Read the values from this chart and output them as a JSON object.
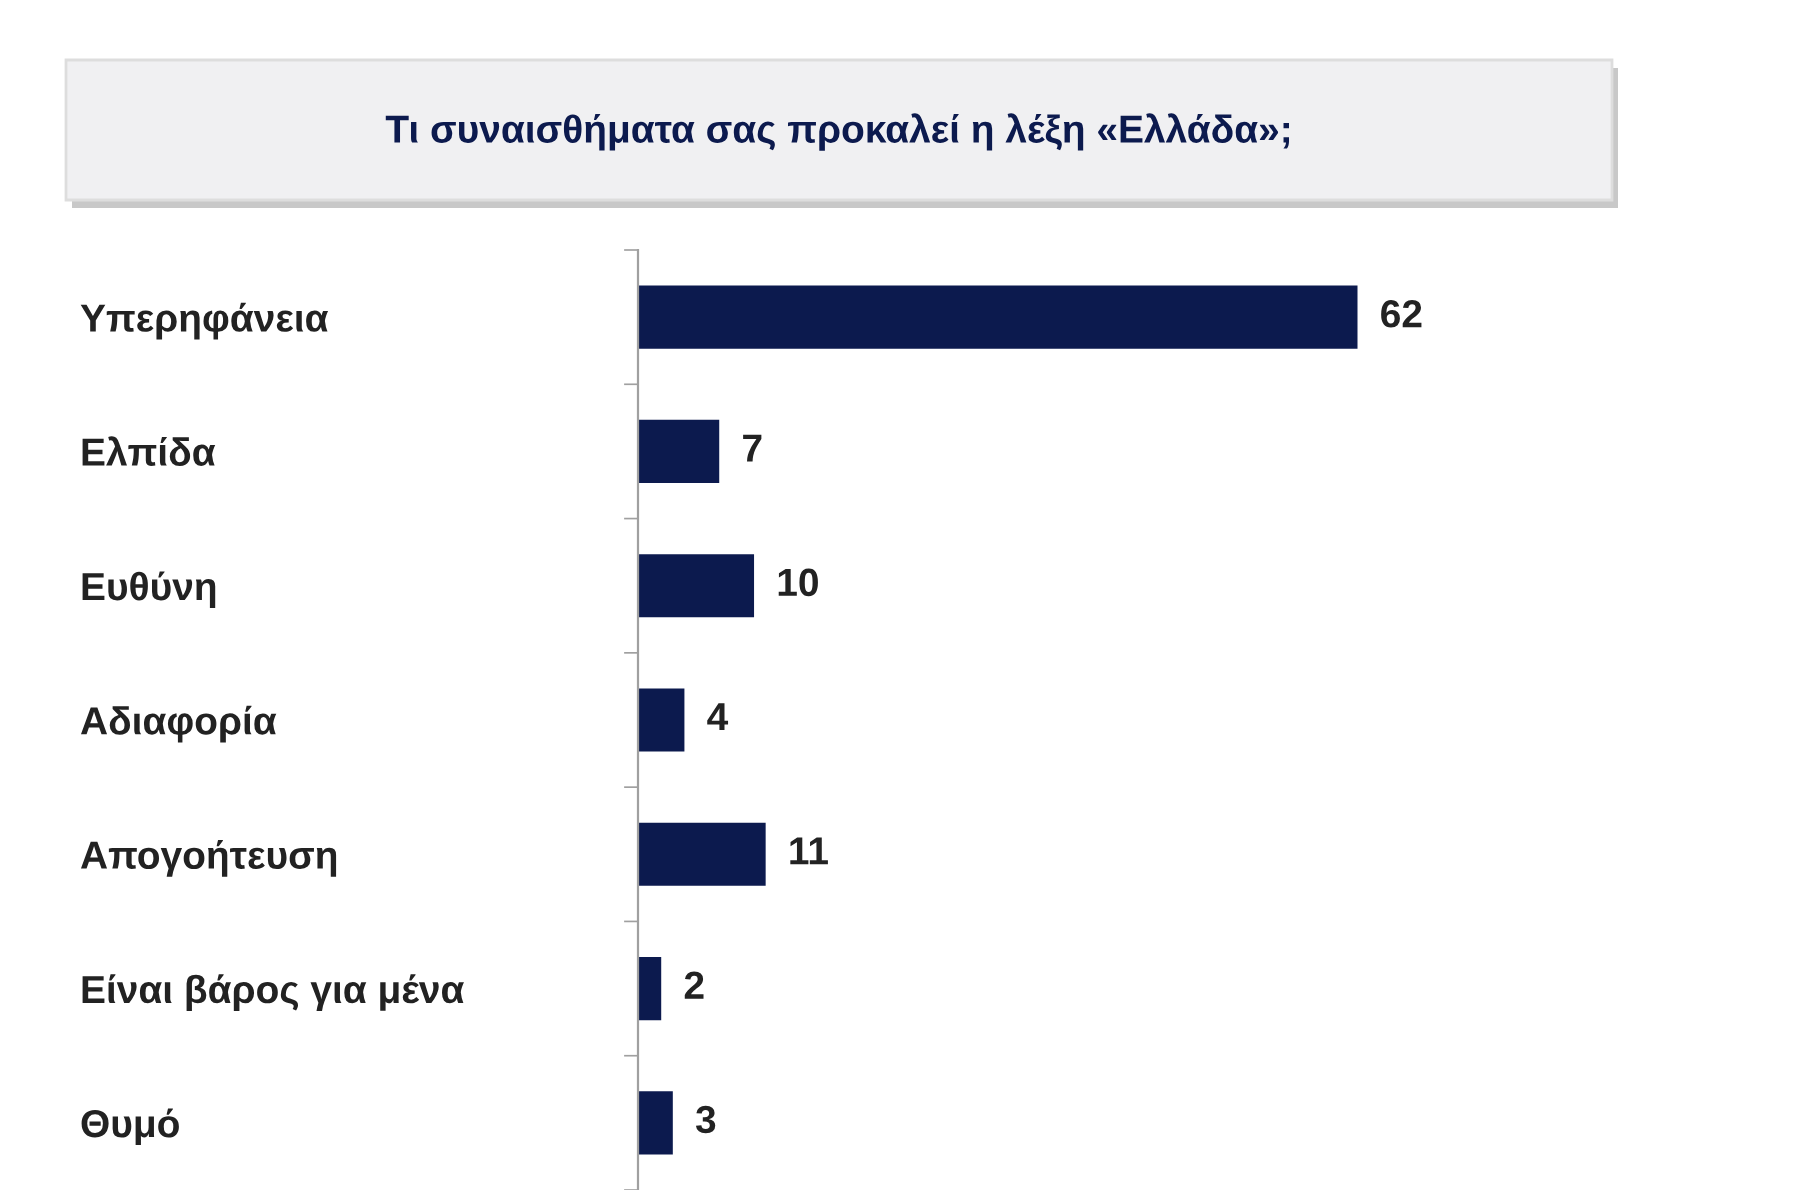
{
  "chart_data": {
    "type": "bar",
    "orientation": "horizontal",
    "title": "Τι συναισθήματα σας προκαλεί η λέξη «Ελλάδα»;",
    "categories": [
      "Υπερηφάνεια",
      "Ελπίδα",
      "Ευθύνη",
      "Αδιαφορία",
      "Απογοήτευση",
      "Είναι βάρος για μένα",
      "Θυμό"
    ],
    "values": [
      62,
      7,
      10,
      4,
      11,
      2,
      3
    ],
    "color": "#0c1a4e",
    "data_labels": true,
    "grid": false,
    "legend": false
  }
}
